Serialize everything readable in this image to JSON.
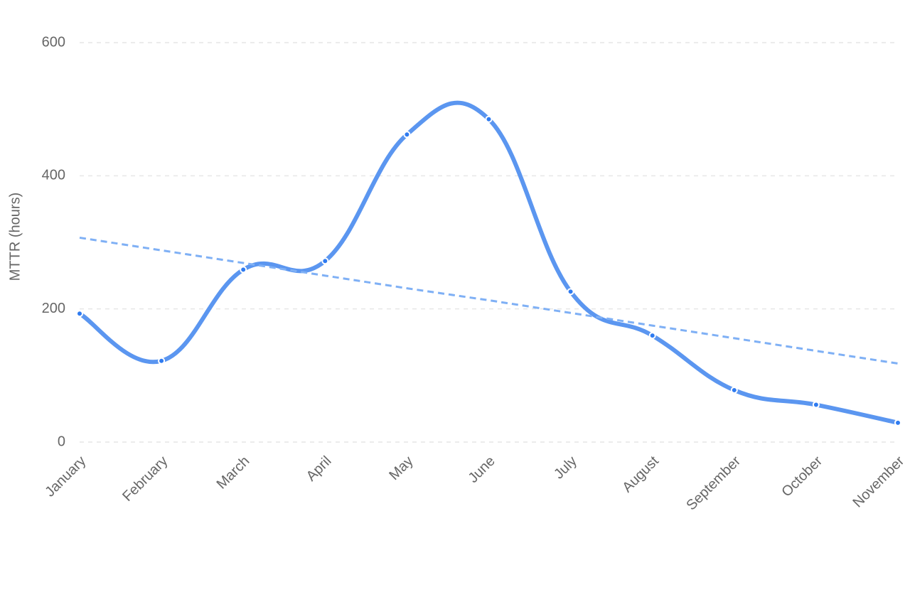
{
  "chart_data": {
    "type": "line",
    "y_label": "MTTR (hours)",
    "categories": [
      "January",
      "February",
      "March",
      "April",
      "May",
      "June",
      "July",
      "August",
      "September",
      "October",
      "November"
    ],
    "series": [
      {
        "color": "#5b96f0",
        "values": [
          193,
          122,
          259,
          272,
          462,
          485,
          226,
          160,
          78,
          56,
          29
        ]
      },
      {
        "color": "#7fb0f5",
        "dashed": true,
        "values": [
          307,
          288,
          269,
          250,
          231,
          213,
          194,
          175,
          156,
          137,
          118
        ]
      }
    ],
    "ylim": [
      0,
      600
    ],
    "yticks": [
      0,
      200,
      400,
      600
    ],
    "grid": true
  }
}
